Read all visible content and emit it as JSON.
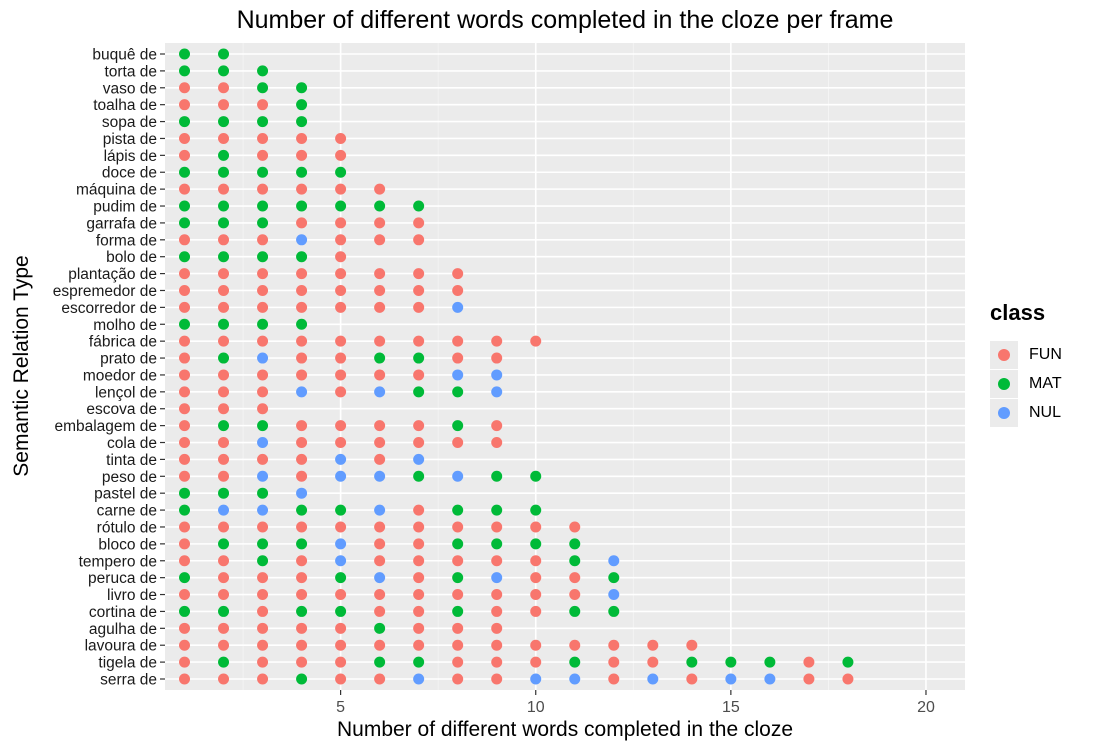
{
  "chart_data": {
    "type": "scatter",
    "title": "Number of different words completed in the cloze per frame",
    "xlabel": "Number of different words completed in the cloze",
    "ylabel": "Semantic Relation Type",
    "xlim": [
      0.5,
      21
    ],
    "xticks": [
      5,
      10,
      15,
      20
    ],
    "grid": true,
    "legend": {
      "title": "class",
      "placement": "right",
      "entries": [
        {
          "name": "FUN",
          "color": "#F8766D"
        },
        {
          "name": "MAT",
          "color": "#00BA38"
        },
        {
          "name": "NUL",
          "color": "#619CFF"
        }
      ]
    },
    "categories": [
      "buquê de",
      "torta de",
      "vaso de",
      "toalha de",
      "sopa de",
      "pista de",
      "lápis de",
      "doce de",
      "máquina de",
      "pudim de",
      "garrafa de",
      "forma de",
      "bolo de",
      "plantação de",
      "espremedor de",
      "escorredor de",
      "molho de",
      "fábrica de",
      "prato de",
      "moedor de",
      "lençol de",
      "escova de",
      "embalagem de",
      "cola de",
      "tinta de",
      "peso de",
      "pastel de",
      "carne de",
      "rótulo de",
      "bloco de",
      "tempero de",
      "peruca de",
      "livro de",
      "cortina de",
      "agulha de",
      "lavoura de",
      "tigela de",
      "serra de"
    ],
    "rows": [
      {
        "label": "buquê de",
        "classes": "MM"
      },
      {
        "label": "torta de",
        "classes": "MMM"
      },
      {
        "label": "vaso de",
        "classes": "FFMM"
      },
      {
        "label": "toalha de",
        "classes": "FFFM"
      },
      {
        "label": "sopa de",
        "classes": "MMMM"
      },
      {
        "label": "pista de",
        "classes": "FFFFF"
      },
      {
        "label": "lápis de",
        "classes": "FMFFF"
      },
      {
        "label": "doce de",
        "classes": "MMMMM"
      },
      {
        "label": "máquina de",
        "classes": "FFFFFF"
      },
      {
        "label": "pudim de",
        "classes": "MMMMMMM"
      },
      {
        "label": "garrafa de",
        "classes": "MMMFFFF"
      },
      {
        "label": "forma de",
        "classes": "FFFNFFF"
      },
      {
        "label": "bolo de",
        "classes": "MMMMF"
      },
      {
        "label": "plantação de",
        "classes": "FFFFFFFF"
      },
      {
        "label": "espremedor de",
        "classes": "FFFFFFFF"
      },
      {
        "label": "escorredor de",
        "classes": "FFFFFFFN"
      },
      {
        "label": "molho de",
        "classes": "MMMM"
      },
      {
        "label": "fábrica de",
        "classes": "FFFFFFFFFF"
      },
      {
        "label": "prato de",
        "classes": "FMNFFMMFF"
      },
      {
        "label": "moedor de",
        "classes": "FFFFFFFNN"
      },
      {
        "label": "lençol de",
        "classes": "FFFNFNMMN"
      },
      {
        "label": "escova de",
        "classes": "FFF"
      },
      {
        "label": "embalagem de",
        "classes": "FMMFFFFMF"
      },
      {
        "label": "cola de",
        "classes": "FFNFFFFFF"
      },
      {
        "label": "tinta de",
        "classes": "FFFFNFN"
      },
      {
        "label": "peso de",
        "classes": "FFNFNNMNMM"
      },
      {
        "label": "pastel de",
        "classes": "MMMN"
      },
      {
        "label": "carne de",
        "classes": "MNNMMNFMMM"
      },
      {
        "label": "rótulo de",
        "classes": "FFFFFFFFFFF"
      },
      {
        "label": "bloco de",
        "classes": "FMMMNFFMMMM"
      },
      {
        "label": "tempero de",
        "classes": "FFMFNFFFFFMN"
      },
      {
        "label": "peruca de",
        "classes": "MFFFMNFMNFFM"
      },
      {
        "label": "livro de",
        "classes": "FFFFFFFFFFFN"
      },
      {
        "label": "cortina de",
        "classes": "MMFMMFFMFFMM"
      },
      {
        "label": "agulha de",
        "classes": "FFFFFMFFF"
      },
      {
        "label": "lavoura de",
        "classes": "FFFFFFFFFFFFFF"
      },
      {
        "label": "tigela de",
        "classes": "FMFFFMMFFFMFFMMMFM"
      },
      {
        "label": "serra de",
        "classes": "FFFMFFNFFNNFNFNNFF"
      }
    ],
    "note": "Each row has dots at x = 1..n where n is the row's number of different words; class codes F=FUN, M=MAT, N=NUL"
  }
}
